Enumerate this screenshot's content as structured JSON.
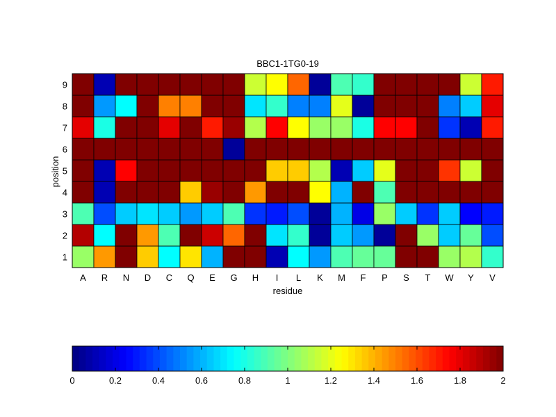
{
  "chart_data": {
    "type": "heatmap",
    "title": "BBC1-1TG0-19",
    "xlabel": "residue",
    "ylabel": "position",
    "x_categories": [
      "A",
      "R",
      "N",
      "D",
      "C",
      "Q",
      "E",
      "G",
      "H",
      "I",
      "L",
      "K",
      "M",
      "F",
      "P",
      "S",
      "T",
      "W",
      "Y",
      "V"
    ],
    "y_categories": [
      "1",
      "2",
      "3",
      "4",
      "5",
      "6",
      "7",
      "8",
      "9"
    ],
    "values": [
      [
        1.05,
        1.45,
        2.0,
        1.35,
        0.75,
        1.3,
        0.6,
        2.0,
        2.0,
        0.1,
        0.75,
        0.55,
        0.9,
        0.95,
        0.95,
        2.0,
        2.0,
        1.05,
        1.1,
        0.85
      ],
      [
        1.9,
        0.75,
        2.0,
        1.45,
        0.9,
        2.0,
        1.85,
        1.55,
        2.0,
        0.7,
        0.85,
        0.05,
        0.65,
        0.55,
        0.05,
        2.0,
        1.05,
        0.65,
        0.95,
        0.4
      ],
      [
        0.9,
        0.4,
        0.65,
        0.7,
        0.65,
        0.55,
        0.65,
        0.9,
        0.35,
        0.3,
        0.4,
        0.05,
        0.6,
        0.2,
        1.05,
        0.65,
        0.35,
        0.65,
        0.25,
        0.3
      ],
      [
        2.0,
        0.1,
        2.0,
        2.0,
        2.0,
        1.35,
        1.95,
        2.0,
        1.45,
        2.0,
        2.0,
        1.25,
        0.6,
        2.0,
        0.9,
        2.0,
        2.0,
        2.0,
        2.0,
        2.0
      ],
      [
        2.0,
        0.1,
        1.75,
        2.0,
        2.0,
        2.0,
        2.0,
        2.0,
        2.0,
        1.35,
        1.35,
        1.1,
        0.1,
        0.65,
        1.2,
        2.0,
        2.0,
        1.65,
        1.15,
        2.0
      ],
      [
        2.0,
        2.0,
        2.0,
        2.0,
        2.0,
        2.0,
        2.0,
        0.05,
        2.0,
        2.0,
        2.0,
        2.0,
        2.0,
        2.0,
        2.0,
        2.0,
        2.0,
        2.0,
        2.0,
        2.0
      ],
      [
        1.8,
        0.8,
        2.0,
        2.0,
        1.8,
        2.0,
        1.7,
        1.95,
        1.1,
        1.75,
        1.25,
        1.05,
        1.05,
        0.8,
        1.75,
        1.75,
        2.0,
        0.35,
        0.1,
        1.7
      ],
      [
        2.0,
        0.55,
        0.75,
        2.0,
        1.5,
        1.5,
        2.0,
        2.0,
        0.7,
        0.85,
        0.5,
        0.5,
        1.2,
        0.05,
        2.0,
        2.0,
        2.0,
        0.5,
        0.65,
        1.8
      ],
      [
        2.0,
        0.1,
        2.0,
        2.0,
        2.0,
        2.0,
        2.0,
        2.0,
        1.15,
        1.25,
        1.55,
        0.05,
        0.9,
        0.85,
        2.0,
        2.0,
        2.0,
        2.0,
        1.15,
        1.7
      ]
    ],
    "colormap": "jet",
    "clim": [
      0,
      2
    ],
    "colorbar": {
      "orientation": "horizontal",
      "position": "bottom",
      "tick_labels": [
        "0",
        "0.2",
        "0.4",
        "0.6",
        "0.8",
        "1",
        "1.2",
        "1.4",
        "1.6",
        "1.8",
        "2"
      ]
    },
    "grid": false
  }
}
